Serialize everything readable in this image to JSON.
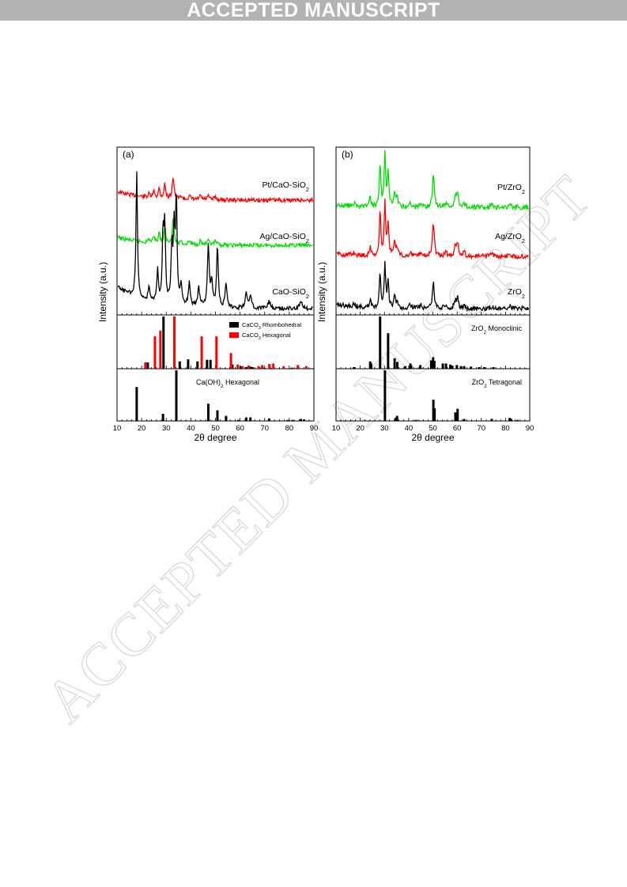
{
  "banner": "ACCEPTED MANUSCRIPT",
  "watermark": "ACCEPTED MANUSCRIPT",
  "chart_data": [
    {
      "type": "line",
      "panel_label": "(a)",
      "ylabel": "Intensity (a.u.)",
      "xlabel": "2θ degree",
      "xlim": [
        10,
        90
      ],
      "xticks": [
        "10",
        "20",
        "30",
        "40",
        "50",
        "60",
        "70",
        "80",
        "90"
      ],
      "series": [
        {
          "label_main": "Pt/CaO-SiO",
          "label_sub": "2",
          "color": "#ff0000"
        },
        {
          "label_main": "Ag/CaO-SiO",
          "label_sub": "2",
          "color": "#00dd00"
        },
        {
          "label_main": "CaO-SiO",
          "label_sub": "2",
          "color": "#000000"
        }
      ],
      "references": [
        {
          "legend": [
            {
              "label_main": "CaCO",
              "label_sub": "3",
              "label_rest": " Rhombohedral",
              "color": "#000000"
            },
            {
              "label_main": "CaCO",
              "label_sub": "3",
              "label_rest": " Hexagonal",
              "color": "#ff0000"
            }
          ],
          "sticks": [
            {
              "color": "#000000",
              "peaks": [
                [
                  23.0,
                  12
                ],
                [
                  29.4,
                  100
                ],
                [
                  36.0,
                  14
                ],
                [
                  39.4,
                  18
                ],
                [
                  43.2,
                  14
                ],
                [
                  47.1,
                  17
                ],
                [
                  48.5,
                  17
                ],
                [
                  56.6,
                  3
                ],
                [
                  57.4,
                  8
                ],
                [
                  60.7,
                  5
                ],
                [
                  61.4,
                  3
                ],
                [
                  63.1,
                  3
                ],
                [
                  64.7,
                  4
                ],
                [
                  65.6,
                  3
                ],
                [
                  69.2,
                  2
                ],
                [
                  70.3,
                  2
                ],
                [
                  72.9,
                  2
                ],
                [
                  81.5,
                  2
                ],
                [
                  83.8,
                  2
                ]
              ]
            },
            {
              "color": "#ff0000",
              "peaks": [
                [
                  21.0,
                  12
                ],
                [
                  24.9,
                  62
                ],
                [
                  27.1,
                  73
                ],
                [
                  32.8,
                  100
                ],
                [
                  43.9,
                  62
                ],
                [
                  49.9,
                  62
                ],
                [
                  55.8,
                  30
                ],
                [
                  58.5,
                  8
                ],
                [
                  60.5,
                  5
                ],
                [
                  62.9,
                  6
                ],
                [
                  67.0,
                  5
                ],
                [
                  68.5,
                  7
                ],
                [
                  71.4,
                  9
                ],
                [
                  73.0,
                  10
                ],
                [
                  77.2,
                  5
                ],
                [
                  83.0,
                  7
                ],
                [
                  86.4,
                  5
                ]
              ]
            }
          ]
        },
        {
          "label_main": "Ca(OH)",
          "label_sub": "2",
          "label_rest": " Hexagonal",
          "sticks": [
            {
              "color": "#000000",
              "peaks": [
                [
                  18.0,
                  67
                ],
                [
                  28.7,
                  14
                ],
                [
                  34.1,
                  100
                ],
                [
                  47.1,
                  34
                ],
                [
                  50.8,
                  21
                ],
                [
                  54.3,
                  10
                ],
                [
                  59.3,
                  2
                ],
                [
                  62.5,
                  7
                ],
                [
                  64.2,
                  7
                ],
                [
                  71.8,
                  5
                ],
                [
                  79.4,
                  2
                ],
                [
                  81.3,
                  2
                ],
                [
                  84.7,
                  4
                ],
                [
                  86.0,
                  3
                ]
              ]
            }
          ]
        }
      ]
    },
    {
      "type": "line",
      "panel_label": "(b)",
      "ylabel": "Intensity (a.u.)",
      "xlabel": "2θ degree",
      "xlim": [
        10,
        90
      ],
      "xticks": [
        "10",
        "20",
        "30",
        "40",
        "50",
        "60",
        "70",
        "80",
        "90"
      ],
      "series": [
        {
          "label_main": "Pt/ZrO",
          "label_sub": "2",
          "color": "#00dd00"
        },
        {
          "label_main": "Ag/ZrO",
          "label_sub": "2",
          "color": "#ff0000"
        },
        {
          "label_main": "ZrO",
          "label_sub": "2",
          "color": "#000000"
        }
      ],
      "references": [
        {
          "label_main": "ZrO",
          "label_sub": "2",
          "label_rest": " Monoclinic",
          "sticks": [
            {
              "color": "#000000",
              "peaks": [
                [
                  17.4,
                  3
                ],
                [
                  24.1,
                  14
                ],
                [
                  24.5,
                  10
                ],
                [
                  28.2,
                  100
                ],
                [
                  31.5,
                  68
                ],
                [
                  34.2,
                  20
                ],
                [
                  35.3,
                  13
                ],
                [
                  38.6,
                  5
                ],
                [
                  40.7,
                  10
                ],
                [
                  41.0,
                  6
                ],
                [
                  44.8,
                  7
                ],
                [
                  49.3,
                  16
                ],
                [
                  50.1,
                  22
                ],
                [
                  50.6,
                  15
                ],
                [
                  54.1,
                  10
                ],
                [
                  55.4,
                  10
                ],
                [
                  57.2,
                  8
                ],
                [
                  58.0,
                  6
                ],
                [
                  59.9,
                  7
                ],
                [
                  61.6,
                  5
                ],
                [
                  62.9,
                  5
                ],
                [
                  65.7,
                  4
                ],
                [
                  69.1,
                  3
                ],
                [
                  71.2,
                  3
                ],
                [
                  75.0,
                  3
                ]
              ]
            }
          ]
        },
        {
          "label_main": "ZrO",
          "label_sub": "2",
          "label_rest": " Tetragonal",
          "sticks": [
            {
              "color": "#000000",
              "peaks": [
                [
                  30.2,
                  100
                ],
                [
                  34.6,
                  6
                ],
                [
                  35.2,
                  10
                ],
                [
                  43.0,
                  2
                ],
                [
                  50.2,
                  42
                ],
                [
                  50.7,
                  25
                ],
                [
                  59.3,
                  17
                ],
                [
                  60.2,
                  24
                ],
                [
                  62.9,
                  4
                ],
                [
                  74.3,
                  4
                ],
                [
                  81.7,
                  6
                ],
                [
                  82.3,
                  4
                ],
                [
                  84.9,
                  2
                ]
              ]
            }
          ]
        }
      ]
    }
  ]
}
